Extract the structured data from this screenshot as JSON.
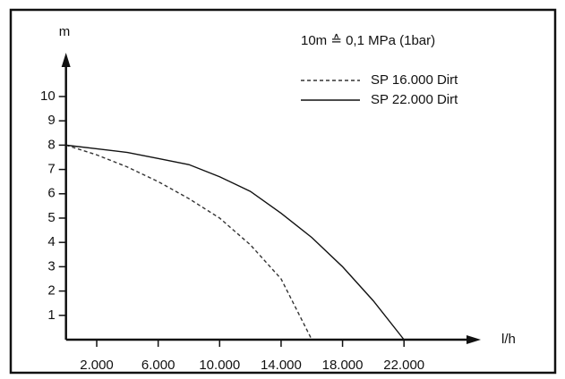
{
  "chart_data": {
    "type": "line",
    "annotation": "10m ≙ 0,1 MPa (1bar)",
    "y_label": "m",
    "x_label": "l/h",
    "x": [
      0,
      2000,
      4000,
      6000,
      8000,
      10000,
      12000,
      14000,
      16000,
      18000,
      20000,
      22000
    ],
    "series": [
      {
        "name": "SP 16.000 Dirt",
        "color": "#333333",
        "dash": true,
        "values": [
          8,
          7.6,
          7.1,
          6.5,
          5.8,
          5.0,
          3.9,
          2.5,
          0,
          null,
          null,
          null
        ]
      },
      {
        "name": "SP 22.000 Dirt",
        "color": "#111111",
        "dash": false,
        "values": [
          8,
          7.85,
          7.7,
          7.45,
          7.2,
          6.7,
          6.1,
          5.2,
          4.2,
          3.0,
          1.6,
          0
        ]
      }
    ],
    "xlim": [
      0,
      27000
    ],
    "ylim": [
      0,
      11.8
    ],
    "xticks": [
      {
        "value": 2000,
        "label": "2.000"
      },
      {
        "value": 6000,
        "label": "6.000"
      },
      {
        "value": 10000,
        "label": "10.000"
      },
      {
        "value": 14000,
        "label": "14.000"
      },
      {
        "value": 18000,
        "label": "18.000"
      },
      {
        "value": 22000,
        "label": "22.000"
      }
    ],
    "yticks": [
      1,
      2,
      3,
      4,
      5,
      6,
      7,
      8,
      9,
      10
    ],
    "legend": "top-right"
  }
}
